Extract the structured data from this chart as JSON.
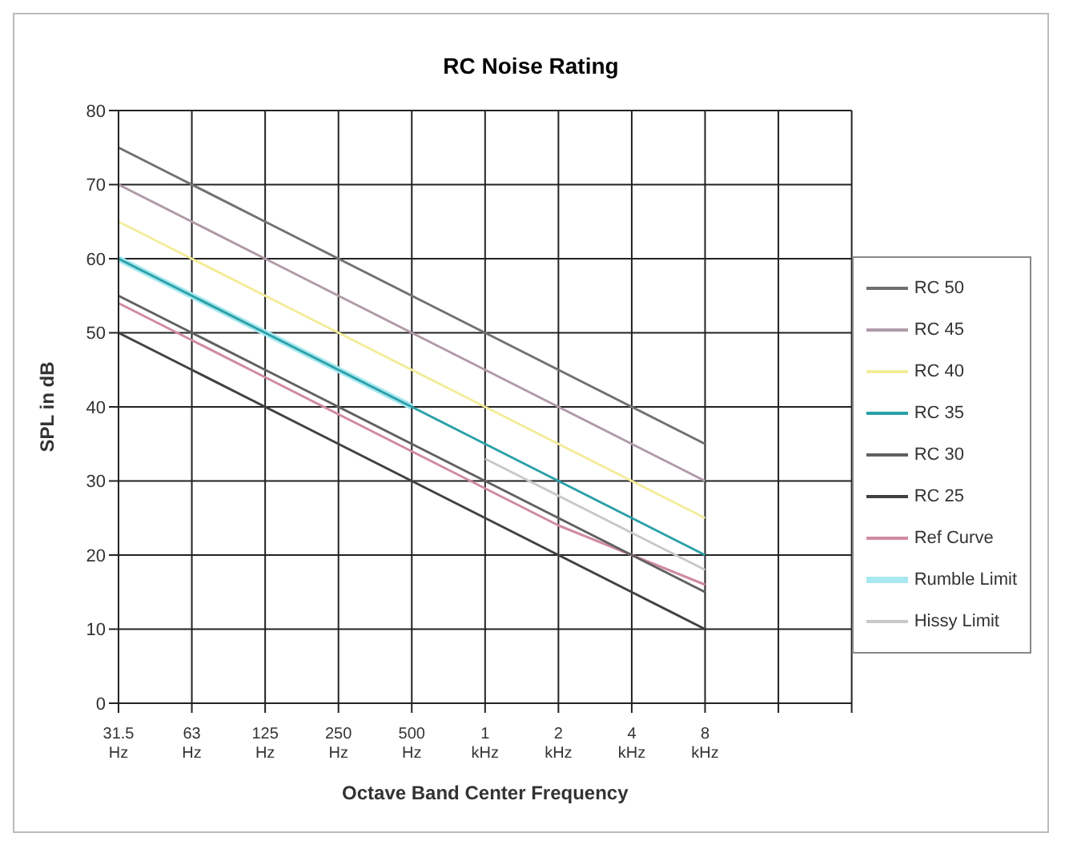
{
  "chart_data": {
    "type": "line",
    "title": "RC Noise Rating",
    "xlabel": "Octave Band Center Frequency",
    "ylabel": "SPL in dB",
    "categories": [
      "31.5 Hz",
      "63 Hz",
      "125 Hz",
      "250 Hz",
      "500 Hz",
      "1 kHz",
      "2 kHz",
      "4 kHz",
      "8 kHz",
      null,
      null
    ],
    "series": [
      {
        "name": "RC 50",
        "color": "#707070",
        "values": [
          75,
          70,
          65,
          60,
          55,
          50,
          45,
          40,
          35,
          null,
          null
        ]
      },
      {
        "name": "RC 45",
        "color": "#b09aa8",
        "values": [
          70,
          65,
          60,
          55,
          50,
          45,
          40,
          35,
          30,
          null,
          null
        ]
      },
      {
        "name": "RC 40",
        "color": "#f3ec9a",
        "values": [
          65,
          60,
          55,
          50,
          45,
          40,
          35,
          30,
          25,
          null,
          null
        ]
      },
      {
        "name": "RC 35",
        "color": "#2aa0a8",
        "values": [
          60,
          55,
          50,
          45,
          40,
          35,
          30,
          25,
          20,
          null,
          null
        ]
      },
      {
        "name": "RC 30",
        "color": "#606060",
        "values": [
          55,
          50,
          45,
          40,
          35,
          30,
          25,
          20,
          15,
          null,
          null
        ]
      },
      {
        "name": "RC 25",
        "color": "#404040",
        "values": [
          50,
          45,
          40,
          35,
          30,
          25,
          20,
          15,
          10,
          null,
          null
        ]
      },
      {
        "name": "Ref Curve",
        "color": "#d08aa0",
        "values": [
          54,
          49,
          44,
          39,
          34,
          29,
          24,
          20,
          16,
          null,
          null
        ]
      },
      {
        "name": "Rumble Limit",
        "color": "#a8e8f0",
        "values": [
          60,
          55,
          50,
          45,
          40,
          null,
          null,
          null,
          null,
          null,
          null
        ]
      },
      {
        "name": "Hissy Limit",
        "color": "#c8c8c8",
        "values": [
          null,
          null,
          null,
          null,
          null,
          33,
          28,
          23,
          18,
          null,
          null
        ]
      }
    ],
    "ylim": [
      0,
      80
    ],
    "yticks": [
      0,
      10,
      20,
      30,
      40,
      50,
      60,
      70,
      80
    ],
    "grid": true,
    "legend": "right",
    "marker": "none",
    "line_style": "solid"
  }
}
